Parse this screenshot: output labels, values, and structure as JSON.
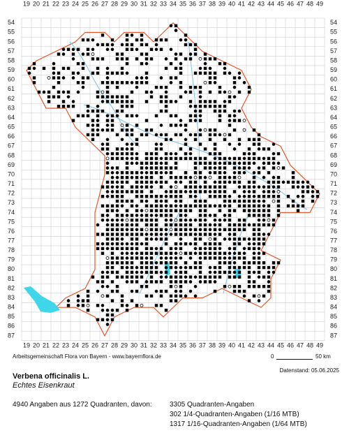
{
  "map": {
    "columns": [
      "19",
      "20",
      "21",
      "22",
      "23",
      "24",
      "25",
      "26",
      "27",
      "28",
      "29",
      "30",
      "31",
      "32",
      "33",
      "34",
      "35",
      "36",
      "37",
      "38",
      "39",
      "40",
      "41",
      "42",
      "43",
      "44",
      "45",
      "46",
      "47",
      "48",
      "49"
    ],
    "rows": [
      "54",
      "55",
      "56",
      "57",
      "58",
      "59",
      "60",
      "61",
      "62",
      "63",
      "64",
      "65",
      "66",
      "67",
      "68",
      "69",
      "70",
      "71",
      "72",
      "73",
      "74",
      "75",
      "76",
      "77",
      "78",
      "79",
      "80",
      "81",
      "82",
      "83",
      "84",
      "85",
      "86",
      "87"
    ],
    "credit": "Arbeitsgemeinschaft Flora von Bayern - www.bayernflora.de",
    "scale_start": "0",
    "scale_end": "50 km",
    "date": "Datenstand: 05.06.2025"
  },
  "species": {
    "name": "Verbena officinalis L.",
    "common_name": "Echtes Eisenkraut"
  },
  "summary": {
    "total": "4940 Angaben aus 1272 Quadranten, davon:",
    "lines": [
      "3305 Quadranten-Angaben",
      "302 1/4-Quadranten-Angaben (1/16 MTB)",
      "1317 1/16-Quadranten-Angaben (1/64 MTB)"
    ]
  }
}
